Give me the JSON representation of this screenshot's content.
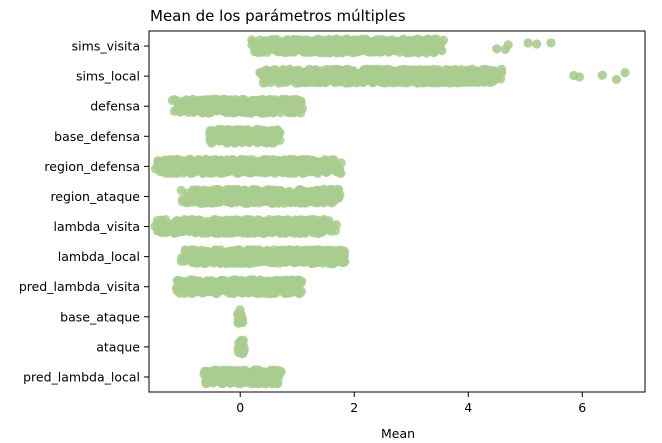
{
  "chart_data": {
    "type": "scatter",
    "subtype": "strip",
    "title": "Mean de los parámetros múltiples",
    "xlabel": "Mean",
    "ylabel": "",
    "xlim": [
      -1.6,
      7.1
    ],
    "x_ticks": [
      0,
      2,
      4,
      6
    ],
    "grid": false,
    "legend": "none",
    "point_color": "#a9cc8e",
    "categories": [
      "sims_visita",
      "sims_local",
      "defensa",
      "base_defensa",
      "region_defensa",
      "region_ataque",
      "lambda_visita",
      "lambda_local",
      "pred_lambda_visita",
      "base_ataque",
      "ataque",
      "pred_lambda_local"
    ],
    "series": [
      {
        "category": "sims_visita",
        "x_range": [
          0.2,
          3.6
        ],
        "outliers": [
          4.5,
          4.65,
          4.7,
          5.05,
          5.2,
          5.45
        ]
      },
      {
        "category": "sims_local",
        "x_range": [
          0.3,
          4.6
        ],
        "outliers": [
          5.85,
          5.95,
          6.35,
          6.6,
          6.75
        ]
      },
      {
        "category": "defensa",
        "x_range": [
          -1.2,
          1.1
        ],
        "outliers": []
      },
      {
        "category": "base_defensa",
        "x_range": [
          -0.55,
          0.75
        ],
        "outliers": []
      },
      {
        "category": "region_defensa",
        "x_range": [
          -1.5,
          1.8
        ],
        "outliers": []
      },
      {
        "category": "region_ataque",
        "x_range": [
          -1.05,
          1.8
        ],
        "outliers": []
      },
      {
        "category": "lambda_visita",
        "x_range": [
          -1.5,
          1.7
        ],
        "outliers": []
      },
      {
        "category": "lambda_local",
        "x_range": [
          -1.05,
          1.85
        ],
        "outliers": []
      },
      {
        "category": "pred_lambda_visita",
        "x_range": [
          -1.15,
          1.1
        ],
        "outliers": []
      },
      {
        "category": "base_ataque",
        "x_range": [
          -0.05,
          0.05
        ],
        "outliers": []
      },
      {
        "category": "ataque",
        "x_range": [
          -0.05,
          0.1
        ],
        "outliers": []
      },
      {
        "category": "pred_lambda_local",
        "x_range": [
          -0.65,
          0.75
        ],
        "outliers": []
      }
    ]
  }
}
